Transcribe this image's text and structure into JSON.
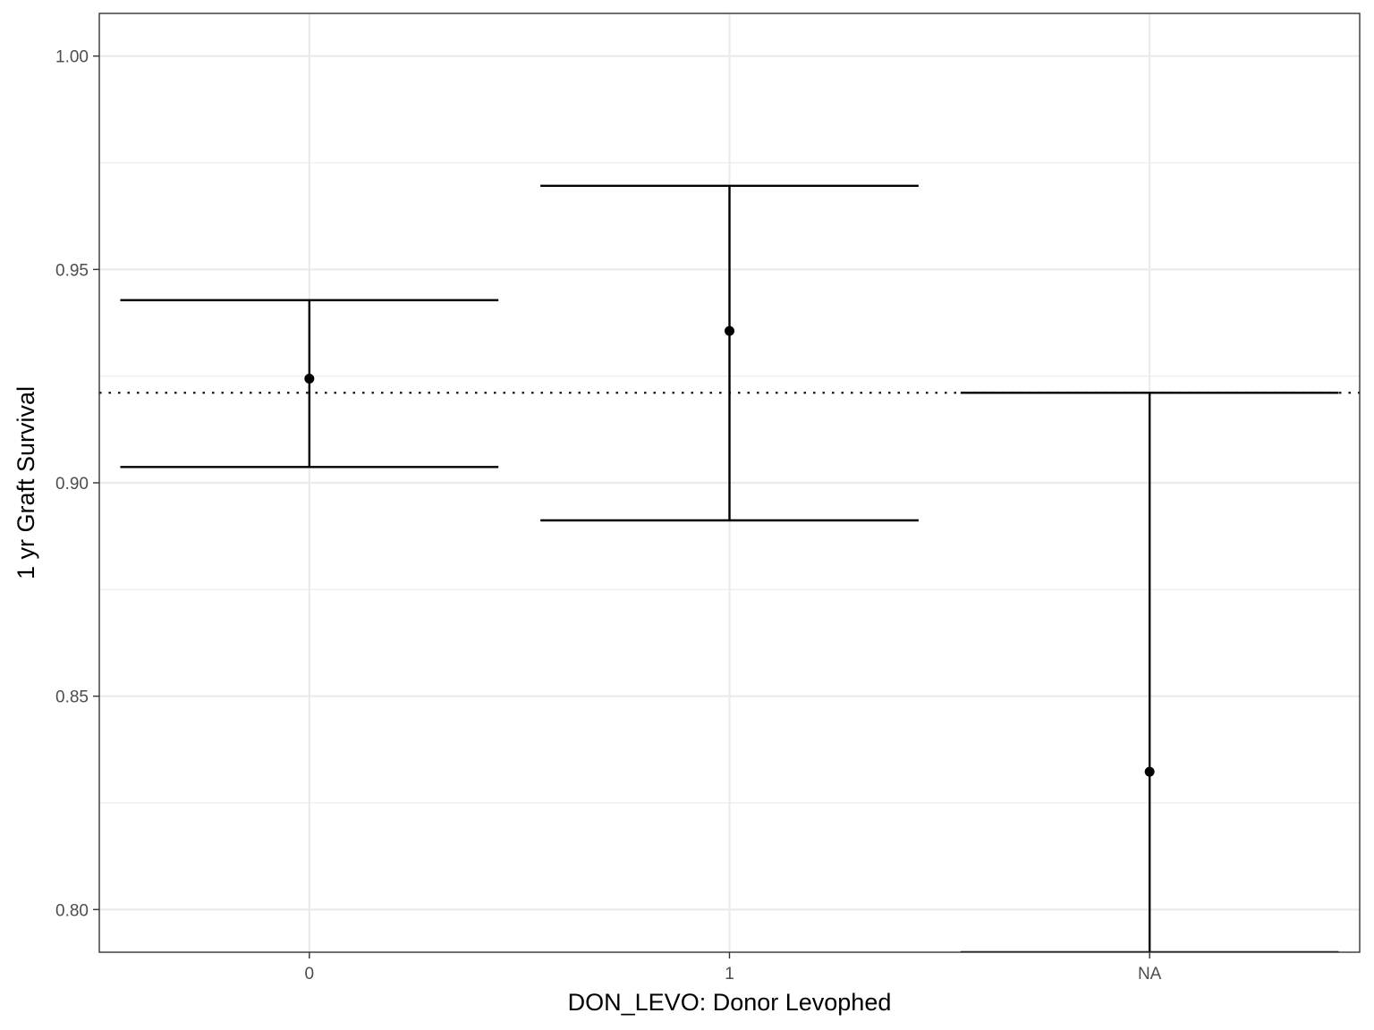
{
  "chart_data": {
    "type": "scatter",
    "subtype": "point-with-error-bars",
    "xlabel": "DON_LEVO: Donor Levophed",
    "ylabel": "1 yr Graft Survival",
    "categories": [
      "0",
      "1",
      "NA"
    ],
    "estimates": [
      0.9244,
      0.9356,
      0.8323
    ],
    "ci_lower": [
      0.9037,
      0.8912,
      0.79
    ],
    "ci_upper": [
      0.9428,
      0.9696,
      0.9211
    ],
    "reference_line": {
      "y": 0.9211,
      "style": "dotted"
    },
    "ylim": [
      0.79,
      1.01
    ],
    "yticks": [
      0.8,
      0.85,
      0.9,
      0.95,
      1.0
    ],
    "ytick_labels": [
      "0.80",
      "0.85",
      "0.90",
      "0.95",
      "1.00"
    ],
    "grid": true,
    "colors": {
      "marks": "#000000",
      "grid": "#ebebeb",
      "panel_border": "#333333",
      "tick_text": "#4d4d4d"
    }
  }
}
